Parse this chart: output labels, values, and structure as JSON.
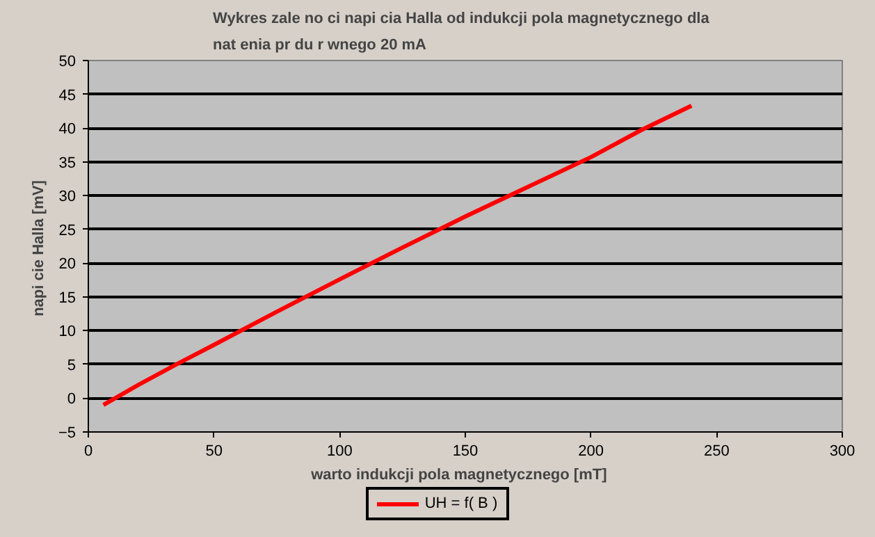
{
  "chart_data": {
    "type": "line",
    "title": "Wykres zale  no ci napi  cia Halla od indukcji pola magnetycznego dla\nnat    enia pr  du r  wnego 20 mA",
    "xlabel": "warto    indukcji pola magnetycznego [mT]",
    "ylabel": "napi  cie Halla [mV]",
    "x": [
      6,
      20,
      35,
      50,
      75,
      100,
      125,
      150,
      175,
      200,
      220,
      240
    ],
    "series": [
      {
        "name": "UH = f( B )",
        "color": "#ff0000",
        "values": [
          -1,
          2,
          5,
          7.9,
          12.8,
          17.6,
          22.3,
          26.9,
          31.3,
          35.7,
          39.7,
          43.3
        ]
      }
    ],
    "xlim": [
      0,
      300
    ],
    "ylim": [
      -5,
      50
    ],
    "xticks": [
      0,
      50,
      100,
      150,
      200,
      250,
      300
    ],
    "yticks": [
      -5,
      0,
      5,
      10,
      15,
      20,
      25,
      30,
      35,
      40,
      45,
      50
    ],
    "grid": "y",
    "legend": "bottom",
    "marker": "none",
    "line_style": "solid"
  }
}
